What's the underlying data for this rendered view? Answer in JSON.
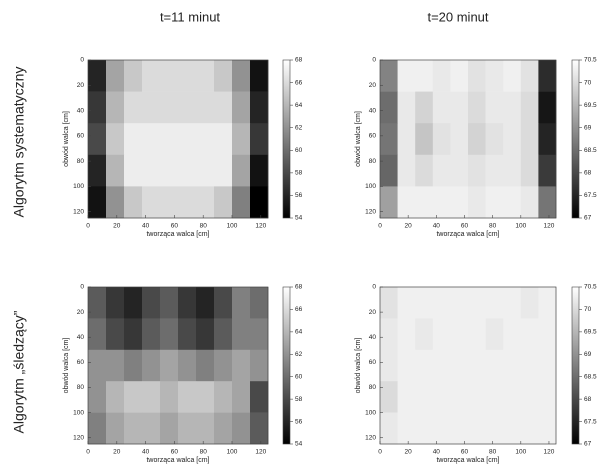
{
  "column_titles": [
    "t=11 minut",
    "t=20 minut"
  ],
  "row_titles": [
    "Algorytm systematyczny",
    "Algorytm „śledzący”"
  ],
  "chart_data": [
    {
      "type": "heatmap",
      "xlabel": "tworząca walca [cm]",
      "ylabel": "obwód walca [cm]",
      "colormap": "gray",
      "xbins": [
        0,
        12.5,
        25,
        37.5,
        50,
        62.5,
        75,
        87.5,
        100,
        112.5,
        125
      ],
      "ybins": [
        0,
        25,
        50,
        75,
        100,
        125
      ],
      "xlim": [
        0,
        125
      ],
      "ylim": [
        125,
        0
      ],
      "xticks": [
        0,
        20,
        40,
        60,
        80,
        100,
        120
      ],
      "yticks": [
        0,
        20,
        40,
        60,
        80,
        100,
        120
      ],
      "clim": [
        54,
        68
      ],
      "cticks": [
        54,
        56,
        58,
        60,
        62,
        64,
        66,
        68
      ],
      "values": [
        [
          56,
          63,
          65,
          66,
          66,
          66,
          66,
          65,
          62,
          55
        ],
        [
          57,
          64,
          66,
          66,
          66,
          66,
          66,
          66,
          63,
          56
        ],
        [
          58,
          65,
          67,
          67,
          67,
          67,
          67,
          67,
          64,
          57
        ],
        [
          56,
          64,
          67,
          67,
          67,
          67,
          67,
          67,
          63,
          55
        ],
        [
          55,
          62,
          65,
          66,
          66,
          66,
          66,
          65,
          61,
          54
        ]
      ]
    },
    {
      "type": "heatmap",
      "xlabel": "tworząca walca [cm]",
      "ylabel": "obwód walca [cm]",
      "colormap": "gray",
      "xbins": [
        0,
        12.5,
        25,
        37.5,
        50,
        62.5,
        75,
        87.5,
        100,
        112.5,
        125
      ],
      "ybins": [
        0,
        25,
        50,
        75,
        100,
        125
      ],
      "xlim": [
        0,
        125
      ],
      "ylim": [
        125,
        0
      ],
      "xticks": [
        0,
        20,
        40,
        60,
        80,
        100,
        120
      ],
      "yticks": [
        0,
        20,
        40,
        60,
        80,
        100,
        120
      ],
      "clim": [
        67,
        70.5
      ],
      "cticks": [
        67,
        67.5,
        68,
        68.5,
        69,
        69.5,
        70,
        70.5
      ],
      "values": [
        [
          68.8,
          70.3,
          70.3,
          70.2,
          70.3,
          70.1,
          70.2,
          70.3,
          70.1,
          67.6
        ],
        [
          68.5,
          70.2,
          69.9,
          70.2,
          70.2,
          70.0,
          70.2,
          70.2,
          70.0,
          67.3
        ],
        [
          68.6,
          70.2,
          69.7,
          70.1,
          70.2,
          69.9,
          70.1,
          70.2,
          70.0,
          67.5
        ],
        [
          68.4,
          70.2,
          70.0,
          70.2,
          70.2,
          70.1,
          70.2,
          70.2,
          70.0,
          67.8
        ],
        [
          69.2,
          70.3,
          70.3,
          70.3,
          70.3,
          70.2,
          70.3,
          70.3,
          70.2,
          68.6
        ]
      ]
    },
    {
      "type": "heatmap",
      "xlabel": "tworząca walca [cm]",
      "ylabel": "obwód walca [cm]",
      "colormap": "gray",
      "xbins": [
        0,
        12.5,
        25,
        37.5,
        50,
        62.5,
        75,
        87.5,
        100,
        112.5,
        125
      ],
      "ybins": [
        0,
        25,
        50,
        75,
        100,
        125
      ],
      "xlim": [
        0,
        125
      ],
      "ylim": [
        125,
        0
      ],
      "xticks": [
        0,
        20,
        40,
        60,
        80,
        100,
        120
      ],
      "yticks": [
        0,
        20,
        40,
        60,
        80,
        100,
        120
      ],
      "clim": [
        54,
        68
      ],
      "cticks": [
        54,
        56,
        58,
        60,
        62,
        64,
        66,
        68
      ],
      "values": [
        [
          59,
          57,
          56,
          58,
          59,
          57,
          56,
          58,
          61,
          60
        ],
        [
          60,
          58,
          57,
          59,
          60,
          58,
          57,
          59,
          61,
          61
        ],
        [
          62,
          62,
          61,
          62,
          63,
          62,
          61,
          62,
          63,
          62
        ],
        [
          62,
          64,
          65,
          65,
          64,
          65,
          65,
          64,
          63,
          58
        ],
        [
          61,
          63,
          64,
          64,
          63,
          64,
          64,
          63,
          62,
          59
        ]
      ]
    },
    {
      "type": "heatmap",
      "xlabel": "tworząca walca [cm]",
      "ylabel": "obwód walca [cm]",
      "colormap": "gray",
      "xbins": [
        0,
        12.5,
        25,
        37.5,
        50,
        62.5,
        75,
        87.5,
        100,
        112.5,
        125
      ],
      "ybins": [
        0,
        25,
        50,
        75,
        100,
        125
      ],
      "xlim": [
        0,
        125
      ],
      "ylim": [
        125,
        0
      ],
      "xticks": [
        0,
        20,
        40,
        60,
        80,
        100,
        120
      ],
      "yticks": [
        0,
        20,
        40,
        60,
        80,
        100,
        120
      ],
      "clim": [
        67,
        70.5
      ],
      "cticks": [
        67,
        67.5,
        68,
        68.5,
        69,
        69.5,
        70,
        70.5
      ],
      "values": [
        [
          70.1,
          70.3,
          70.3,
          70.3,
          70.3,
          70.3,
          70.3,
          70.3,
          70.2,
          70.3
        ],
        [
          70.2,
          70.3,
          70.2,
          70.3,
          70.3,
          70.3,
          70.2,
          70.3,
          70.3,
          70.3
        ],
        [
          70.2,
          70.3,
          70.3,
          70.3,
          70.3,
          70.3,
          70.3,
          70.3,
          70.3,
          70.3
        ],
        [
          70.0,
          70.3,
          70.3,
          70.3,
          70.3,
          70.3,
          70.3,
          70.3,
          70.3,
          70.3
        ],
        [
          70.2,
          70.3,
          70.3,
          70.3,
          70.3,
          70.3,
          70.3,
          70.3,
          70.3,
          70.3
        ]
      ]
    }
  ]
}
